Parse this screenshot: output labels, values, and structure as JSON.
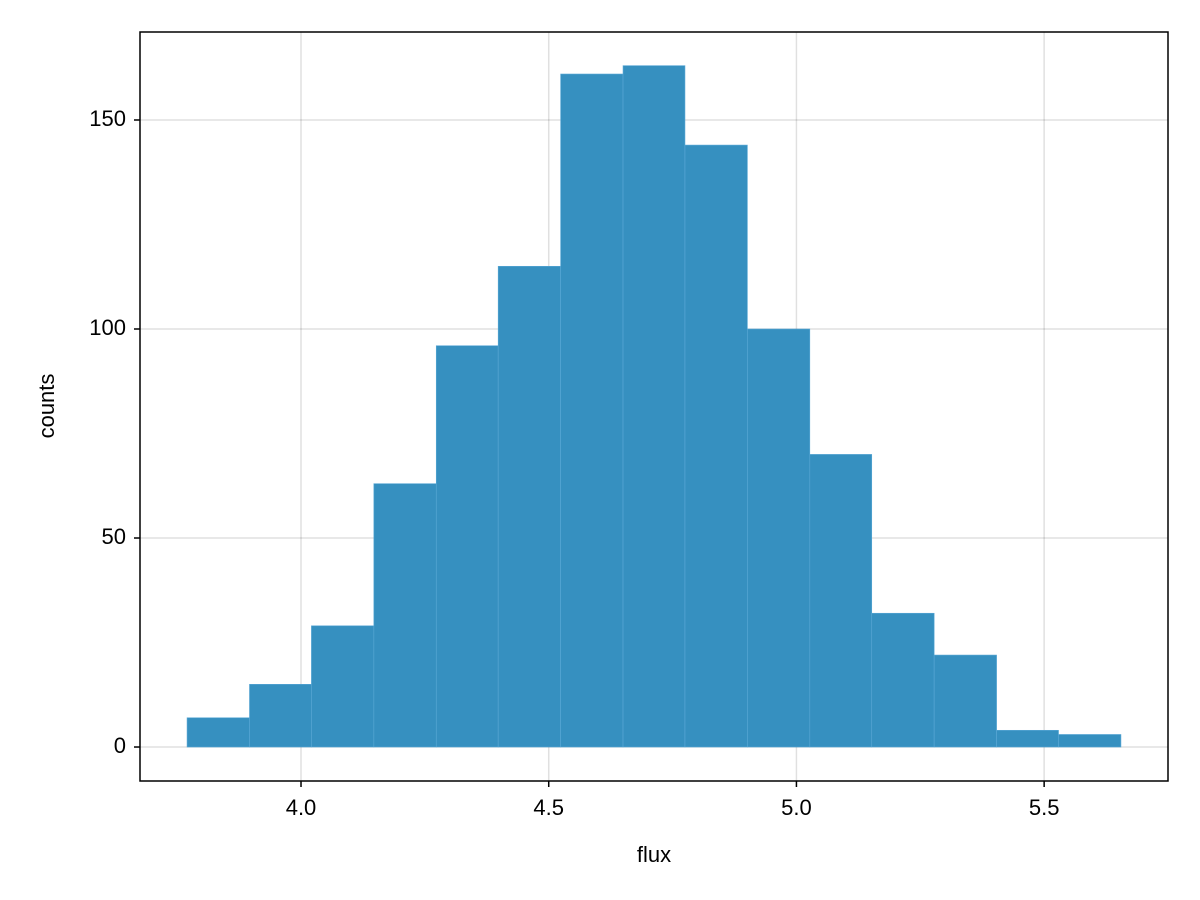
{
  "chart_data": {
    "type": "histogram",
    "xlabel": "flux",
    "ylabel": "counts",
    "bins": [
      3.77,
      3.896,
      4.021,
      4.147,
      4.273,
      4.398,
      4.524,
      4.65,
      4.775,
      4.901,
      5.027,
      5.152,
      5.278,
      5.404,
      5.529,
      5.655
    ],
    "counts": [
      7,
      15,
      29,
      63,
      96,
      115,
      161,
      163,
      144,
      100,
      70,
      32,
      22,
      4,
      3
    ],
    "color": "#3690c0",
    "xlim": [
      3.675,
      5.75
    ],
    "ylim": [
      -8.13,
      171.05
    ],
    "xticks": [
      {
        "value": 4.0,
        "label": "4.0"
      },
      4.5,
      {
        "value": 5.0,
        "label": "5.0"
      },
      5.5
    ],
    "yticks": [
      0,
      50,
      100,
      150
    ],
    "grid": true
  }
}
